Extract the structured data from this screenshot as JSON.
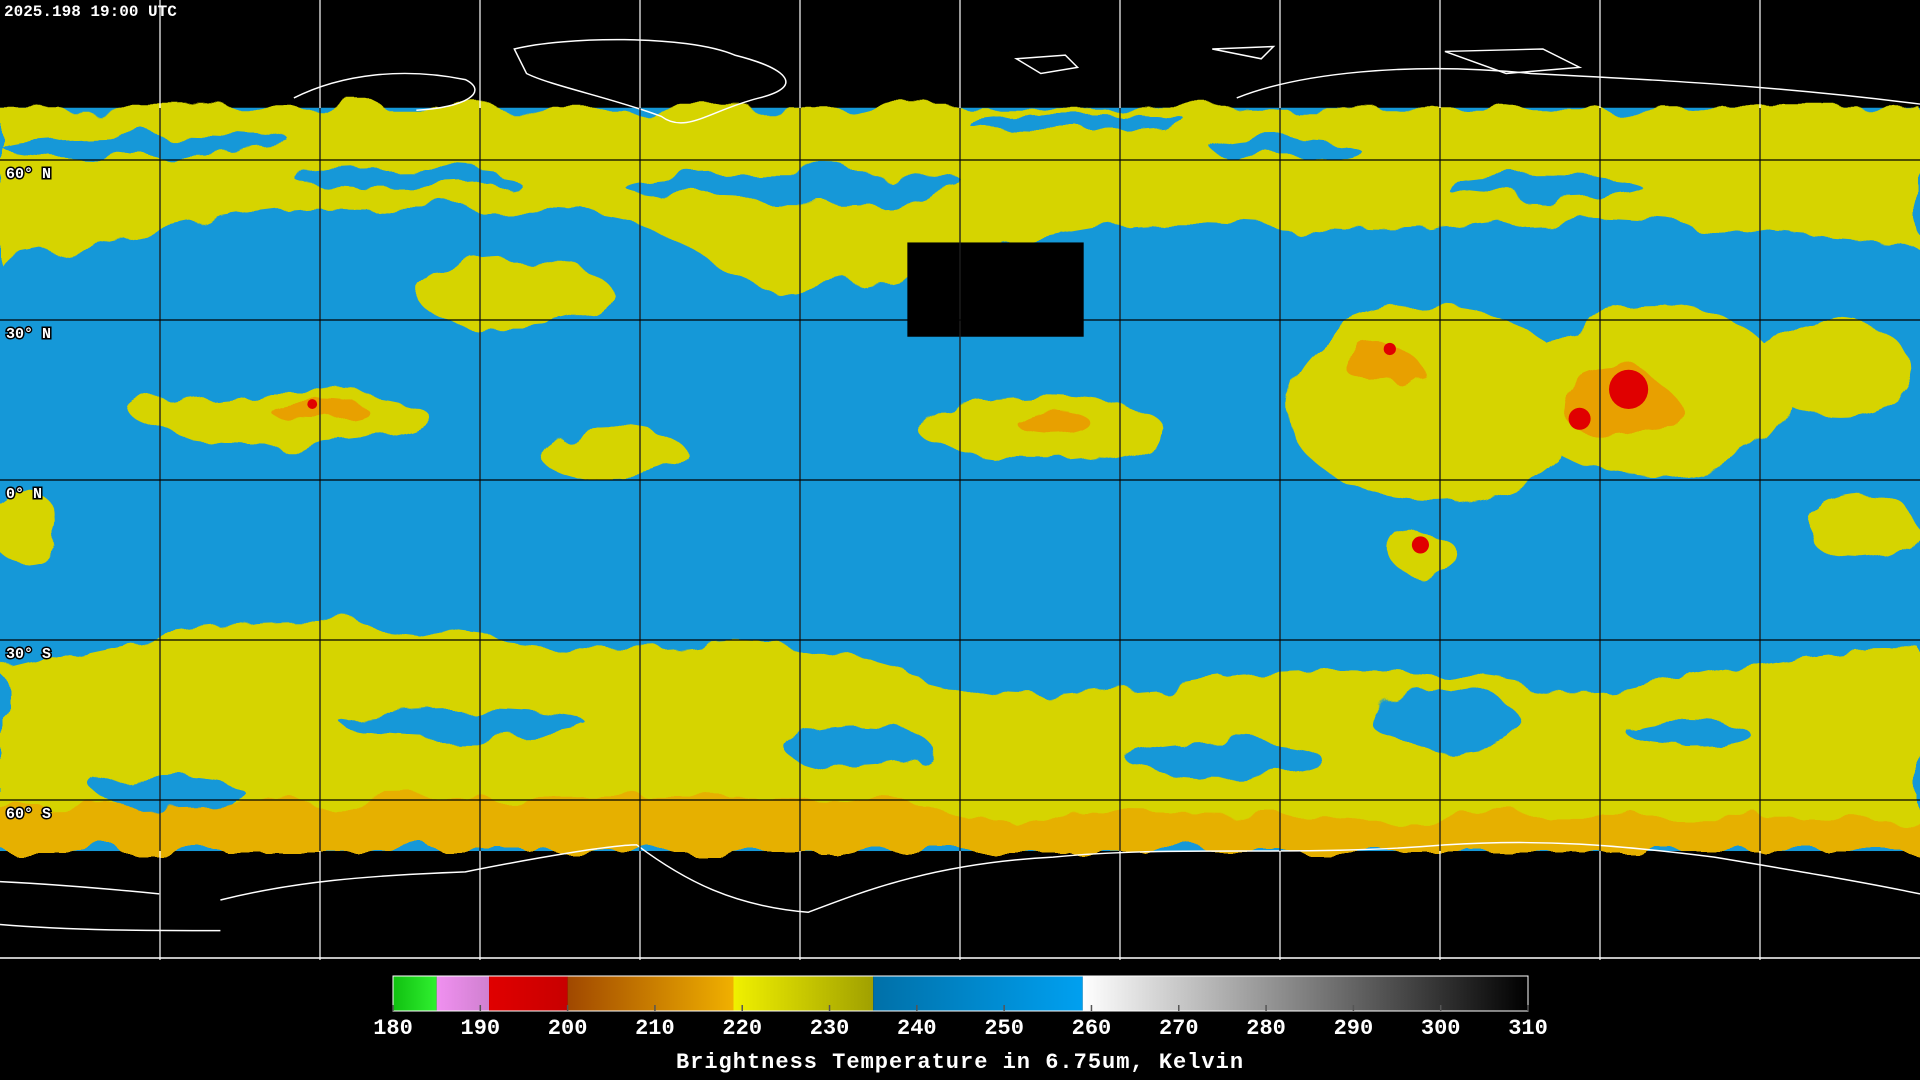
{
  "header": {
    "timestamp": "2025.198 19:00 UTC"
  },
  "map": {
    "latitude_labels": [
      "60° N",
      "30° N",
      "0° N",
      "30° S",
      "60° S"
    ]
  },
  "colorbar": {
    "range": [
      180,
      310
    ],
    "ticks": [
      180,
      190,
      200,
      210,
      220,
      230,
      240,
      250,
      260,
      270,
      280,
      290,
      300,
      310
    ],
    "segments": [
      {
        "from": 180,
        "to": 185,
        "colors": [
          "#10c010",
          "#30f030"
        ]
      },
      {
        "from": 185,
        "to": 191,
        "colors": [
          "#f090f0",
          "#d080d0"
        ]
      },
      {
        "from": 191,
        "to": 200,
        "colors": [
          "#e00000",
          "#c80000"
        ]
      },
      {
        "from": 200,
        "to": 219,
        "colors": [
          "#a04800",
          "#f0b000"
        ]
      },
      {
        "from": 219,
        "to": 235,
        "colors": [
          "#f0f000",
          "#a0a000"
        ]
      },
      {
        "from": 235,
        "to": 259,
        "colors": [
          "#0070a8",
          "#00a0f0"
        ]
      },
      {
        "from": 259,
        "to": 310,
        "colors": [
          "#ffffff",
          "#000000"
        ]
      }
    ],
    "label": "Brightness Temperature in 6.75um, Kelvin"
  }
}
